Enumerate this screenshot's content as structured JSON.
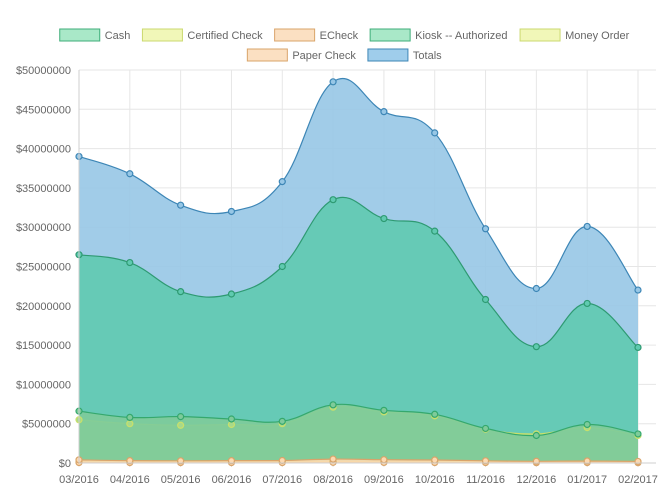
{
  "chart_data": {
    "type": "area",
    "categories": [
      "03/2016",
      "04/2016",
      "05/2016",
      "06/2016",
      "07/2016",
      "08/2016",
      "09/2016",
      "10/2016",
      "11/2016",
      "12/2016",
      "01/2017",
      "02/2017"
    ],
    "ylim": [
      0,
      50000000
    ],
    "yticks": [
      0,
      5000000,
      10000000,
      15000000,
      20000000,
      25000000,
      30000000,
      35000000,
      40000000,
      45000000,
      50000000
    ],
    "ytick_labels": [
      "$0",
      "$5000000",
      "$10000000",
      "$15000000",
      "$20000000",
      "$25000000",
      "$30000000",
      "$35000000",
      "$40000000",
      "$45000000",
      "$50000000"
    ],
    "grid": true,
    "legend_position": "top",
    "series": [
      {
        "name": "Totals",
        "fill": "#97c7e6",
        "stroke": "#3d86b6",
        "values": [
          39000000,
          36800000,
          32800000,
          32000000,
          35800000,
          48500000,
          44700000,
          42000000,
          29800000,
          22200000,
          30100000,
          22000000
        ]
      },
      {
        "name": "Kiosk -- Authorized",
        "fill": "#5fcab0",
        "stroke": "#2e9a72",
        "values": [
          26500000,
          25500000,
          21800000,
          21500000,
          25000000,
          33500000,
          31100000,
          29500000,
          20800000,
          14800000,
          20300000,
          14700000
        ]
      },
      {
        "name": "Money Order",
        "fill": "#a8d98a",
        "stroke": "#c9e06a",
        "values": [
          5500000,
          5000000,
          4800000,
          4900000,
          5000000,
          7100000,
          6500000,
          6000000,
          4300000,
          3700000,
          4500000,
          3500000
        ]
      },
      {
        "name": "Cash",
        "fill": "#7ecb9a",
        "stroke": "#35a86d",
        "values": [
          6600000,
          5800000,
          5900000,
          5600000,
          5300000,
          7400000,
          6700000,
          6200000,
          4400000,
          3500000,
          4900000,
          3700000
        ]
      },
      {
        "name": "Certified Check",
        "fill": "#e9f5a8",
        "stroke": "#c8d96a",
        "values": [
          150000,
          120000,
          110000,
          120000,
          130000,
          200000,
          160000,
          150000,
          110000,
          90000,
          100000,
          90000
        ]
      },
      {
        "name": "ECheck",
        "fill": "#fcd9b0",
        "stroke": "#d9a46a",
        "values": [
          60000,
          50000,
          50000,
          50000,
          50000,
          80000,
          70000,
          60000,
          50000,
          40000,
          50000,
          40000
        ]
      },
      {
        "name": "Paper Check",
        "fill": "#fcd9b0",
        "stroke": "#d9a46a",
        "values": [
          400000,
          300000,
          280000,
          300000,
          320000,
          500000,
          420000,
          380000,
          280000,
          220000,
          250000,
          200000
        ]
      }
    ],
    "legend": [
      {
        "name": "Cash",
        "fill": "#a9e8c8",
        "stroke": "#3fae7a"
      },
      {
        "name": "Certified Check",
        "fill": "#f1f7b8",
        "stroke": "#cbd96f"
      },
      {
        "name": "ECheck",
        "fill": "#fbe0c2",
        "stroke": "#d9a46a"
      },
      {
        "name": "Kiosk -- Authorized",
        "fill": "#a9e8c8",
        "stroke": "#3fae7a"
      },
      {
        "name": "Money Order",
        "fill": "#f1f7b8",
        "stroke": "#cbd96f"
      },
      {
        "name": "Paper Check",
        "fill": "#fbe0c2",
        "stroke": "#d9a46a"
      },
      {
        "name": "Totals",
        "fill": "#9fcdeb",
        "stroke": "#3d86b6"
      }
    ]
  }
}
